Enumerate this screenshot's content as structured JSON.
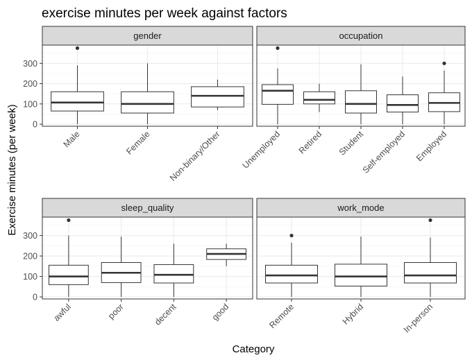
{
  "chart_data": {
    "type": "box",
    "title": "exercise minutes per week against factors",
    "xlabel": "Category",
    "ylabel": "Exercise minutes (per week)",
    "ylim": [
      -10,
      390
    ],
    "yticks": [
      0,
      100,
      200,
      300
    ],
    "grid": true,
    "facets": [
      {
        "name": "gender",
        "categories": [
          "Male",
          "Female",
          "Non-binary/Other"
        ],
        "boxes": [
          {
            "min": 0,
            "q1": 65,
            "median": 107,
            "q3": 160,
            "max": 290,
            "outliers": [
              375
            ]
          },
          {
            "min": 0,
            "q1": 55,
            "median": 100,
            "q3": 160,
            "max": 300,
            "outliers": []
          },
          {
            "min": 70,
            "q1": 85,
            "median": 140,
            "q3": 185,
            "max": 220,
            "outliers": []
          }
        ]
      },
      {
        "name": "occupation",
        "categories": [
          "Unemployed",
          "Retired",
          "Student",
          "Self-employed",
          "Employed"
        ],
        "boxes": [
          {
            "min": 0,
            "q1": 98,
            "median": 165,
            "q3": 195,
            "max": 275,
            "outliers": [
              375
            ]
          },
          {
            "min": 60,
            "q1": 100,
            "median": 120,
            "q3": 160,
            "max": 200,
            "outliers": []
          },
          {
            "min": 0,
            "q1": 55,
            "median": 100,
            "q3": 165,
            "max": 295,
            "outliers": []
          },
          {
            "min": 0,
            "q1": 60,
            "median": 95,
            "q3": 145,
            "max": 235,
            "outliers": []
          },
          {
            "min": 0,
            "q1": 62,
            "median": 105,
            "q3": 155,
            "max": 265,
            "outliers": [
              300
            ]
          }
        ]
      },
      {
        "name": "sleep_quality",
        "categories": [
          "awful",
          "poor",
          "decent",
          "good"
        ],
        "boxes": [
          {
            "min": 0,
            "q1": 60,
            "median": 100,
            "q3": 155,
            "max": 300,
            "outliers": [
              375
            ]
          },
          {
            "min": 0,
            "q1": 70,
            "median": 118,
            "q3": 168,
            "max": 295,
            "outliers": []
          },
          {
            "min": 0,
            "q1": 68,
            "median": 108,
            "q3": 158,
            "max": 260,
            "outliers": []
          },
          {
            "min": 150,
            "q1": 183,
            "median": 210,
            "q3": 235,
            "max": 260,
            "outliers": []
          }
        ]
      },
      {
        "name": "work_mode",
        "categories": [
          "Remote",
          "Hybrid",
          "In-person"
        ],
        "boxes": [
          {
            "min": 0,
            "q1": 68,
            "median": 105,
            "q3": 155,
            "max": 265,
            "outliers": [
              300
            ]
          },
          {
            "min": 0,
            "q1": 53,
            "median": 100,
            "q3": 160,
            "max": 295,
            "outliers": []
          },
          {
            "min": 0,
            "q1": 68,
            "median": 105,
            "q3": 168,
            "max": 290,
            "outliers": [
              375
            ]
          }
        ]
      }
    ]
  }
}
